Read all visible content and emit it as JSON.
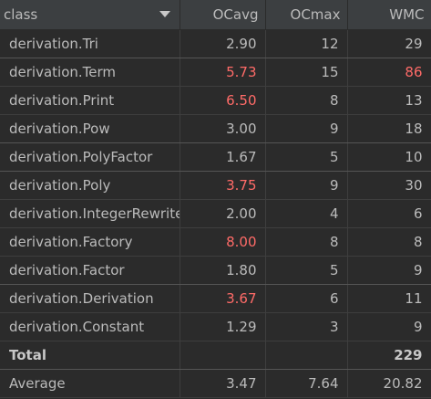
{
  "header": {
    "class_label": "class",
    "ocavg_label": "OCavg",
    "ocmax_label": "OCmax",
    "wmc_label": "WMC",
    "sort_icon": "chevron-down-icon"
  },
  "colors": {
    "background": "#2b2b2b",
    "header_background": "#3c3f41",
    "text": "#bbbbbb",
    "highlight_red": "#ff6b68",
    "accent": "#4a88c7"
  },
  "rows": [
    {
      "name": "derivation.Tri",
      "ocavg": "2.90",
      "ocmax": "12",
      "wmc": "29",
      "ocavg_red": false,
      "wmc_red": false
    },
    {
      "name": "derivation.Term",
      "ocavg": "5.73",
      "ocmax": "15",
      "wmc": "86",
      "ocavg_red": true,
      "wmc_red": true
    },
    {
      "name": "derivation.Print",
      "ocavg": "6.50",
      "ocmax": "8",
      "wmc": "13",
      "ocavg_red": true,
      "wmc_red": false
    },
    {
      "name": "derivation.Pow",
      "ocavg": "3.00",
      "ocmax": "9",
      "wmc": "18",
      "ocavg_red": false,
      "wmc_red": false
    },
    {
      "name": "derivation.PolyFactor",
      "ocavg": "1.67",
      "ocmax": "5",
      "wmc": "10",
      "ocavg_red": false,
      "wmc_red": false
    },
    {
      "name": "derivation.Poly",
      "ocavg": "3.75",
      "ocmax": "9",
      "wmc": "30",
      "ocavg_red": true,
      "wmc_red": false
    },
    {
      "name": "derivation.IntegerRewrite",
      "ocavg": "2.00",
      "ocmax": "4",
      "wmc": "6",
      "ocavg_red": false,
      "wmc_red": false
    },
    {
      "name": "derivation.Factory",
      "ocavg": "8.00",
      "ocmax": "8",
      "wmc": "8",
      "ocavg_red": true,
      "wmc_red": false
    },
    {
      "name": "derivation.Factor",
      "ocavg": "1.80",
      "ocmax": "5",
      "wmc": "9",
      "ocavg_red": false,
      "wmc_red": false
    },
    {
      "name": "derivation.Derivation",
      "ocavg": "3.67",
      "ocmax": "6",
      "wmc": "11",
      "ocavg_red": true,
      "wmc_red": false
    },
    {
      "name": "derivation.Constant",
      "ocavg": "1.29",
      "ocmax": "3",
      "wmc": "9",
      "ocavg_red": false,
      "wmc_red": false
    }
  ],
  "total": {
    "label": "Total",
    "ocavg": "",
    "ocmax": "",
    "wmc": "229"
  },
  "average": {
    "label": "Average",
    "ocavg": "3.47",
    "ocmax": "7.64",
    "wmc": "20.82"
  }
}
